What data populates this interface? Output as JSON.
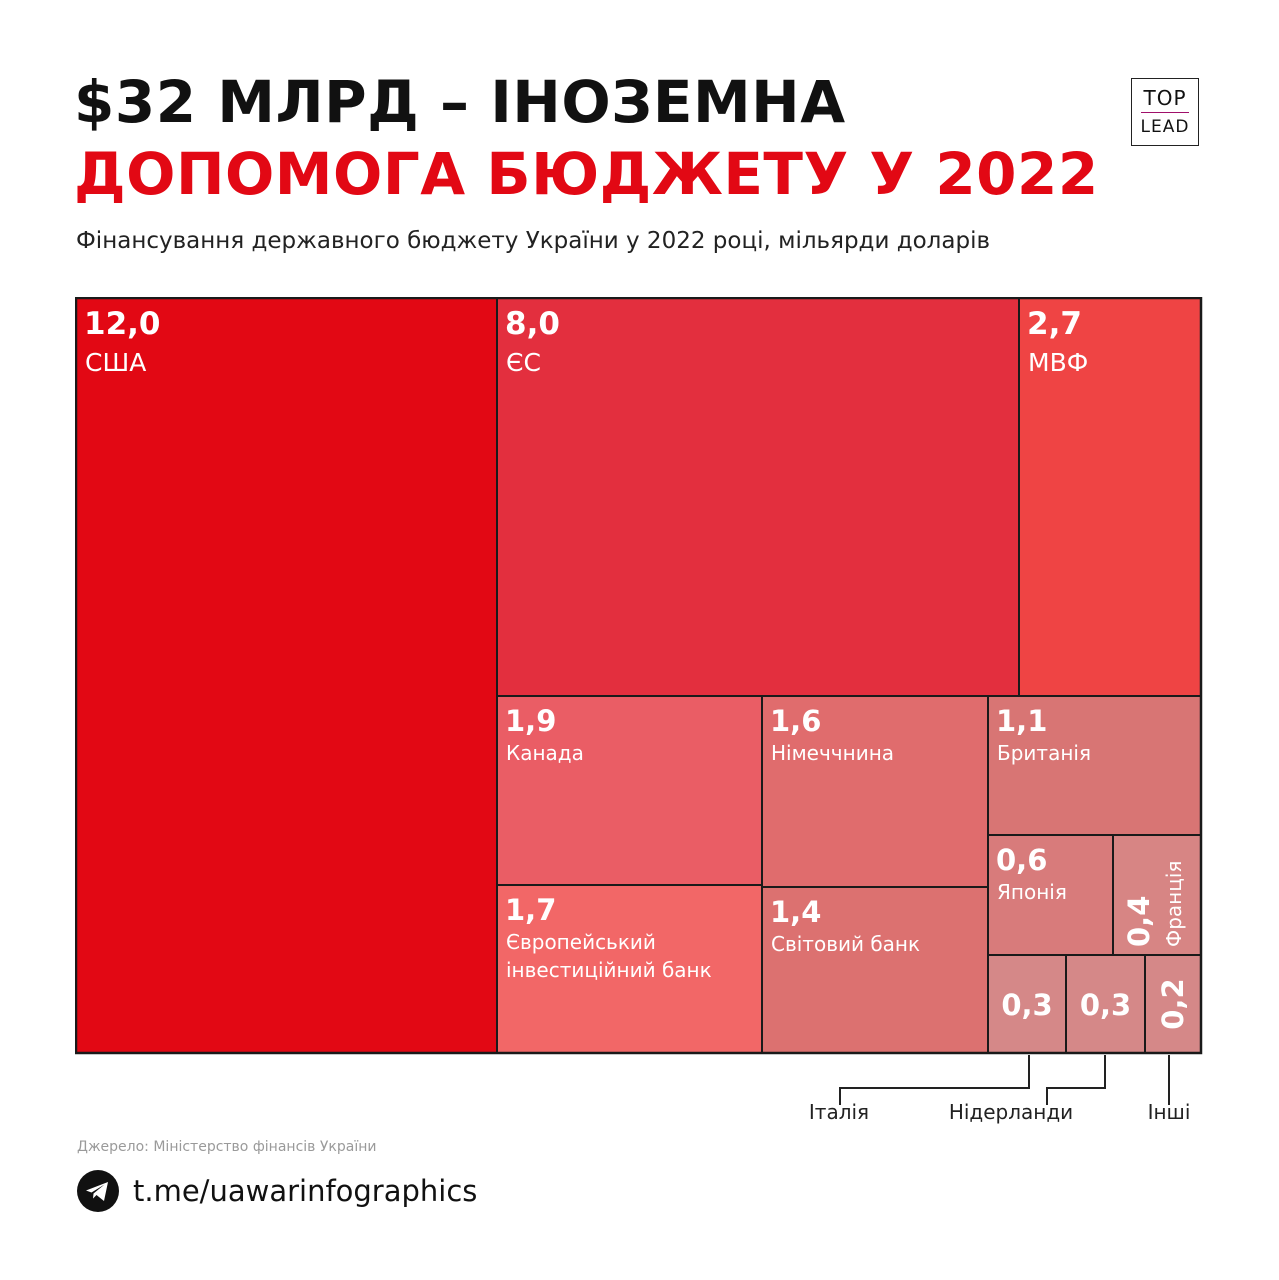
{
  "title": {
    "line1": "$32 МЛРД – ІНОЗЕМНА",
    "line2": "ДОПОМОГА БЮДЖЕТУ У 2022"
  },
  "logo": {
    "line1": "TOP",
    "line2": "LEAD"
  },
  "subtitle": "Фінансування державного бюджету України у 2022 році, мільярди доларів",
  "colors": {
    "title_black": "#111111",
    "title_red": "#e20814",
    "border": "#1a1a1a"
  },
  "chart_data": {
    "type": "treemap",
    "title": "Фінансування державного бюджету України у 2022 році, мільярди доларів",
    "unit": "мільярди доларів",
    "total": 32,
    "items": [
      {
        "id": "usa",
        "name": "США",
        "value": 12.0,
        "value_label": "12,0",
        "color": "#e20814"
      },
      {
        "id": "eu",
        "name": "ЄС",
        "value": 8.0,
        "value_label": "8,0",
        "color": "#e32f3e"
      },
      {
        "id": "imf",
        "name": "МВФ",
        "value": 2.7,
        "value_label": "2,7",
        "color": "#ef4444"
      },
      {
        "id": "canada",
        "name": "Канада",
        "value": 1.9,
        "value_label": "1,9",
        "color": "#ea5d65"
      },
      {
        "id": "germany",
        "name": "Німеччнина",
        "value": 1.6,
        "value_label": "1,6",
        "color": "#e06c6d"
      },
      {
        "id": "uk",
        "name": "Британія",
        "value": 1.1,
        "value_label": "1,1",
        "color": "#d87574"
      },
      {
        "id": "eib",
        "name": "Європейський інвестиційний банк",
        "name_lines": [
          "Європейський",
          "інвестиційний банк"
        ],
        "value": 1.7,
        "value_label": "1,7",
        "color": "#f26767"
      },
      {
        "id": "worldbank",
        "name": "Світовий банк",
        "value": 1.4,
        "value_label": "1,4",
        "color": "#dc7170"
      },
      {
        "id": "japan",
        "name": "Японія",
        "value": 0.6,
        "value_label": "0,6",
        "color": "#d87b7b"
      },
      {
        "id": "france",
        "name": "Франція",
        "value": 0.4,
        "value_label": "0,4",
        "color": "#d78584"
      },
      {
        "id": "italy",
        "name": "Італія",
        "value": 0.3,
        "value_label": "0,3",
        "color": "#d58888"
      },
      {
        "id": "netherlands",
        "name": "Нідерланди",
        "value": 0.3,
        "value_label": "0,3",
        "color": "#d58888"
      },
      {
        "id": "others",
        "name": "Інші",
        "value": 0.2,
        "value_label": "0,2",
        "color": "#d58888"
      }
    ]
  },
  "source": "Джерело: Міністерство фінансів України",
  "footer": {
    "link": "t.me/uawarinfographics",
    "icon": "telegram-icon"
  }
}
